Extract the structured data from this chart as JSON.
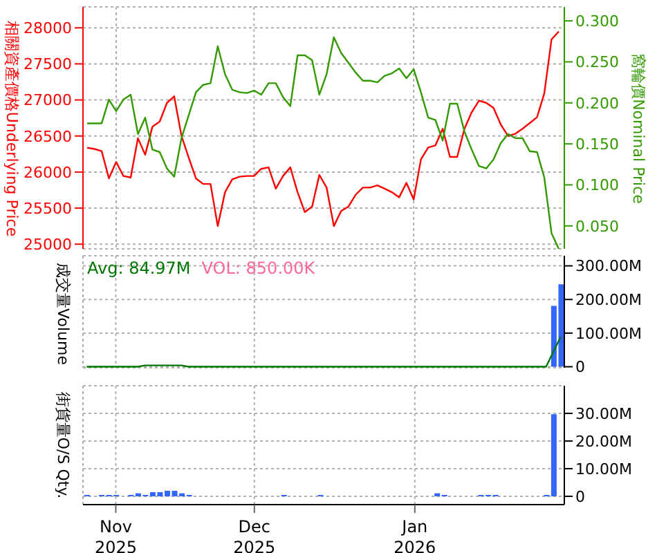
{
  "chart_data": [
    {
      "type": "line",
      "ylabel": "相關資產價格Underlying Price",
      "y2label": "窩輪價Nominal Price",
      "categories": [
        null,
        null,
        null,
        null,
        null,
        null,
        null,
        null,
        null,
        null,
        null,
        null,
        null,
        null,
        null,
        null,
        null,
        null,
        null,
        null,
        null,
        null,
        null,
        null,
        null,
        null,
        null,
        null,
        null,
        null,
        null,
        null,
        null,
        null,
        null,
        null,
        null,
        null,
        null,
        null,
        null,
        null,
        null,
        null,
        null,
        null,
        null,
        null,
        null,
        null,
        null,
        null,
        null,
        null,
        null,
        null,
        null,
        null,
        null,
        null,
        null,
        null,
        null,
        null,
        null,
        null
      ],
      "tick_labels": "y",
      "grid": true,
      "ylim": [
        24935,
        28290
      ],
      "yticks": [
        25000,
        25500,
        26000,
        26500,
        27000,
        27500,
        28000
      ],
      "y2lim": [
        0.022,
        0.317
      ],
      "y2ticks": [
        {
          "value": 0.05,
          "label": "0.050"
        },
        {
          "value": 0.1,
          "label": "0.100"
        },
        {
          "value": 0.15,
          "label": "0.150"
        },
        {
          "value": 0.2,
          "label": "0.200"
        },
        {
          "value": 0.25,
          "label": "0.250"
        },
        {
          "value": 0.3,
          "label": "0.300"
        }
      ],
      "series": [
        {
          "color": "#ff0000",
          "values": [
            26337,
            26320,
            26290,
            25913,
            26140,
            25945,
            25925,
            26470,
            26240,
            26630,
            26700,
            26960,
            27050,
            26500,
            26200,
            25910,
            25835,
            25835,
            25250,
            25720,
            25900,
            25935,
            25945,
            25945,
            26045,
            26065,
            25770,
            25945,
            26065,
            25720,
            25445,
            25520,
            25960,
            25785,
            25250,
            25460,
            25520,
            25685,
            25785,
            25785,
            25815,
            25770,
            25720,
            25650,
            25850,
            25620,
            26175,
            26340,
            26370,
            26600,
            26210,
            26210,
            26600,
            26830,
            26990,
            26960,
            26890,
            26660,
            26500,
            26530,
            26600,
            26680,
            26760,
            27090,
            27840,
            27950
          ]
        },
        {
          "color": "#339900",
          "axis": "y2",
          "values": [
            0.175,
            0.175,
            0.175,
            0.204,
            0.19,
            0.204,
            0.21,
            0.162,
            0.182,
            0.143,
            0.14,
            0.12,
            0.11,
            0.157,
            0.185,
            0.213,
            0.222,
            0.224,
            0.269,
            0.235,
            0.216,
            0.213,
            0.212,
            0.215,
            0.21,
            0.224,
            0.224,
            0.207,
            0.196,
            0.258,
            0.258,
            0.252,
            0.21,
            0.235,
            0.28,
            0.261,
            0.249,
            0.237,
            0.227,
            0.227,
            0.225,
            0.233,
            0.236,
            0.242,
            0.23,
            0.241,
            0.213,
            0.182,
            0.179,
            0.154,
            0.199,
            0.199,
            0.165,
            0.143,
            0.123,
            0.12,
            0.131,
            0.151,
            0.162,
            0.157,
            0.157,
            0.141,
            0.14,
            0.109,
            0.041,
            0.022
          ]
        }
      ]
    },
    {
      "type": "bar",
      "ylabel": "成交量Volume",
      "annotations": [
        "Avg: 84.97M",
        "VOL: 850.00K"
      ],
      "categories": [
        null,
        null,
        null,
        null,
        null,
        null,
        null,
        null,
        null,
        null,
        null,
        null,
        null,
        null,
        null,
        null,
        null,
        null,
        null,
        null,
        null,
        null,
        null,
        null,
        null,
        null,
        null,
        null,
        null,
        null,
        null,
        null,
        null,
        null,
        null,
        null,
        null,
        null,
        null,
        null,
        null,
        null,
        null,
        null,
        null,
        null,
        null,
        null,
        null,
        null,
        null,
        null,
        null,
        null,
        null,
        null,
        null,
        null,
        null,
        null,
        null,
        null,
        null,
        null,
        null,
        null
      ],
      "tick_labels": "y",
      "grid": true,
      "ylim": [
        -3,
        330
      ],
      "yticks": [
        {
          "value": 0,
          "label": "0"
        },
        {
          "value": 100,
          "label": "100.00M"
        },
        {
          "value": 200,
          "label": "200.00M"
        },
        {
          "value": 300,
          "label": "300.00M"
        }
      ],
      "series": [
        {
          "color": "#3366ff",
          "values": [
            null,
            null,
            null,
            null,
            null,
            null,
            null,
            null,
            null,
            null,
            null,
            null,
            null,
            null,
            null,
            null,
            null,
            null,
            null,
            null,
            null,
            null,
            null,
            null,
            null,
            null,
            null,
            null,
            null,
            null,
            null,
            null,
            null,
            null,
            null,
            null,
            null,
            null,
            null,
            null,
            null,
            null,
            null,
            null,
            null,
            null,
            null,
            null,
            null,
            null,
            null,
            null,
            null,
            null,
            null,
            null,
            null,
            null,
            null,
            null,
            null,
            null,
            null,
            null,
            181,
            245
          ]
        },
        {
          "type": "line",
          "color": "#007700",
          "values": [
            0,
            0,
            0,
            0,
            0,
            0,
            0,
            0,
            4,
            4,
            4,
            4,
            4,
            4,
            0,
            0,
            0,
            0,
            0,
            0,
            0,
            0,
            0,
            0,
            0,
            0,
            0,
            0,
            0,
            0,
            0,
            0,
            0,
            0,
            0,
            0,
            0,
            0,
            0,
            0,
            0,
            0,
            0,
            0,
            0,
            0,
            0,
            0,
            0,
            0,
            0,
            0,
            0,
            0,
            0,
            0,
            0,
            0,
            0,
            0,
            0,
            0,
            0,
            0,
            45,
            89
          ]
        }
      ]
    },
    {
      "type": "bar",
      "ylabel": "街貨量O/S Qty.",
      "categories": [
        null,
        null,
        null,
        null,
        "Nov 2025",
        null,
        null,
        null,
        null,
        null,
        null,
        null,
        null,
        null,
        null,
        null,
        null,
        null,
        null,
        null,
        null,
        null,
        null,
        "Dec 2025",
        null,
        null,
        null,
        null,
        null,
        null,
        null,
        null,
        null,
        null,
        null,
        null,
        null,
        null,
        null,
        null,
        null,
        null,
        null,
        null,
        null,
        "Jan 2026",
        null,
        null,
        null,
        null,
        null,
        null,
        null,
        null,
        null,
        null,
        null,
        null,
        null,
        null,
        null,
        null,
        null,
        null,
        null,
        null
      ],
      "grid": true,
      "ylim": [
        -3,
        40
      ],
      "yticks": [
        {
          "value": 0,
          "label": "0"
        },
        {
          "value": 10,
          "label": "10.00M"
        },
        {
          "value": 20,
          "label": "20.00M"
        },
        {
          "value": 30,
          "label": "30.00M"
        }
      ],
      "series": [
        {
          "color": "#3366ff",
          "values": [
            0.5,
            null,
            0.5,
            0.5,
            0.5,
            null,
            0.5,
            1.1,
            0.5,
            1.5,
            1.5,
            2,
            2,
            1.1,
            0.5,
            null,
            null,
            null,
            null,
            null,
            null,
            null,
            null,
            null,
            null,
            null,
            null,
            0.5,
            null,
            null,
            null,
            null,
            0.5,
            null,
            null,
            null,
            null,
            null,
            null,
            null,
            null,
            null,
            null,
            null,
            null,
            null,
            null,
            null,
            1.1,
            0.5,
            null,
            null,
            null,
            null,
            0.5,
            0.5,
            0.5,
            null,
            null,
            null,
            null,
            null,
            null,
            0.5,
            29.7,
            null
          ]
        }
      ]
    }
  ]
}
